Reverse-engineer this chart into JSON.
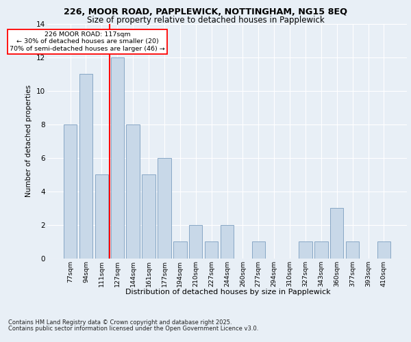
{
  "title1": "226, MOOR ROAD, PAPPLEWICK, NOTTINGHAM, NG15 8EQ",
  "title2": "Size of property relative to detached houses in Papplewick",
  "xlabel": "Distribution of detached houses by size in Papplewick",
  "ylabel": "Number of detached properties",
  "categories": [
    "77sqm",
    "94sqm",
    "111sqm",
    "127sqm",
    "144sqm",
    "161sqm",
    "177sqm",
    "194sqm",
    "210sqm",
    "227sqm",
    "244sqm",
    "260sqm",
    "277sqm",
    "294sqm",
    "310sqm",
    "327sqm",
    "343sqm",
    "360sqm",
    "377sqm",
    "393sqm",
    "410sqm"
  ],
  "values": [
    8,
    11,
    5,
    12,
    8,
    5,
    6,
    1,
    2,
    1,
    2,
    0,
    1,
    0,
    0,
    1,
    1,
    3,
    1,
    0,
    1
  ],
  "bar_color": "#c8d8e8",
  "bar_edge_color": "#7a9dbf",
  "red_line_index": 2,
  "annotation_title": "226 MOOR ROAD: 117sqm",
  "annotation_line1": "← 30% of detached houses are smaller (20)",
  "annotation_line2": "70% of semi-detached houses are larger (46) →",
  "ylim": [
    0,
    14
  ],
  "yticks": [
    0,
    2,
    4,
    6,
    8,
    10,
    12,
    14
  ],
  "footer1": "Contains HM Land Registry data © Crown copyright and database right 2025.",
  "footer2": "Contains public sector information licensed under the Open Government Licence v3.0.",
  "bg_color": "#e8eff6",
  "plot_bg_color": "#e8eff6",
  "grid_color": "#ffffff"
}
